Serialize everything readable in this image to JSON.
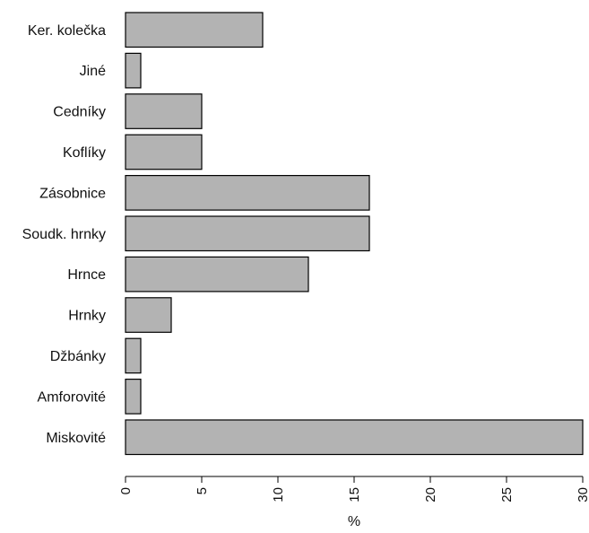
{
  "chart_data": {
    "type": "bar",
    "orientation": "horizontal",
    "categories": [
      "Ker. kolečka",
      "Jiné",
      "Cedníky",
      "Koflíky",
      "Zásobnice",
      "Soudk. hrnky",
      "Hrnce",
      "Hrnky",
      "Džbánky",
      "Amforovité",
      "Miskovité"
    ],
    "values": [
      9,
      1,
      5,
      5,
      16,
      16,
      12,
      3,
      1,
      1,
      30
    ],
    "title": "",
    "xlabel": "%",
    "ylabel": "",
    "xlim": [
      0,
      30
    ],
    "xticks": [
      0,
      5,
      10,
      15,
      20,
      25,
      30
    ],
    "xtick_labels": [
      "0",
      "5",
      "10",
      "15",
      "20",
      "25",
      "30"
    ],
    "tick_label_rotation": "vertical",
    "grid": false,
    "legend": "none",
    "bar_color": "#b3b3b3",
    "bar_edge_color": "#000000"
  }
}
